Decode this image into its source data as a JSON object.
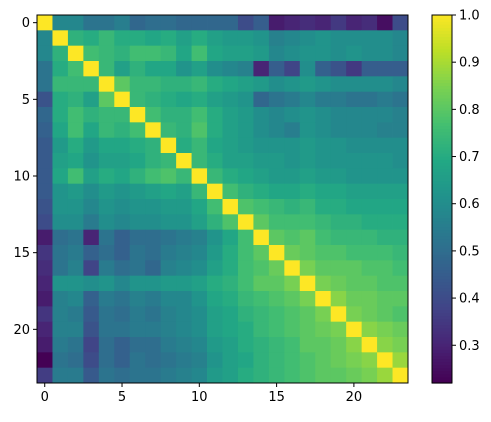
{
  "chart_data": {
    "type": "heatmap",
    "title": "",
    "xlabel": "",
    "ylabel": "",
    "xlim": [
      -0.5,
      23.5
    ],
    "ylim": [
      23.5,
      -0.5
    ],
    "x_ticks": [
      0,
      5,
      10,
      15,
      20
    ],
    "y_ticks": [
      0,
      5,
      10,
      15,
      20
    ],
    "colormap": "viridis",
    "colorbar": {
      "range": [
        0.22,
        1.0
      ],
      "ticks": [
        0.3,
        0.4,
        0.5,
        0.6,
        0.7,
        0.8,
        0.9,
        1.0
      ],
      "tick_labels": [
        "0.3",
        "0.4",
        "0.5",
        "0.6",
        "0.7",
        "0.8",
        "0.9",
        "1.0"
      ]
    },
    "size": 24,
    "values": [
      [
        1.0,
        0.58,
        0.58,
        0.52,
        0.52,
        0.55,
        0.48,
        0.5,
        0.5,
        0.48,
        0.48,
        0.48,
        0.48,
        0.4,
        0.45,
        0.28,
        0.3,
        0.32,
        0.3,
        0.35,
        0.3,
        0.32,
        0.25,
        0.4
      ],
      [
        0.58,
        1.0,
        0.72,
        0.7,
        0.74,
        0.7,
        0.7,
        0.68,
        0.7,
        0.66,
        0.7,
        0.66,
        0.64,
        0.64,
        0.62,
        0.56,
        0.58,
        0.6,
        0.62,
        0.6,
        0.6,
        0.6,
        0.6,
        0.58
      ],
      [
        0.58,
        0.72,
        1.0,
        0.76,
        0.74,
        0.72,
        0.76,
        0.76,
        0.74,
        0.68,
        0.76,
        0.68,
        0.66,
        0.66,
        0.64,
        0.58,
        0.6,
        0.62,
        0.62,
        0.6,
        0.62,
        0.6,
        0.6,
        0.58
      ],
      [
        0.52,
        0.7,
        0.76,
        1.0,
        0.74,
        0.66,
        0.72,
        0.68,
        0.68,
        0.62,
        0.66,
        0.6,
        0.58,
        0.56,
        0.3,
        0.45,
        0.38,
        0.6,
        0.46,
        0.42,
        0.35,
        0.45,
        0.45,
        0.45
      ],
      [
        0.52,
        0.74,
        0.74,
        0.74,
        1.0,
        0.8,
        0.74,
        0.74,
        0.72,
        0.72,
        0.74,
        0.7,
        0.68,
        0.66,
        0.64,
        0.6,
        0.62,
        0.64,
        0.62,
        0.6,
        0.6,
        0.6,
        0.6,
        0.58
      ],
      [
        0.42,
        0.7,
        0.72,
        0.66,
        0.8,
        1.0,
        0.74,
        0.72,
        0.7,
        0.68,
        0.7,
        0.66,
        0.64,
        0.62,
        0.48,
        0.52,
        0.54,
        0.58,
        0.54,
        0.54,
        0.52,
        0.52,
        0.54,
        0.52
      ],
      [
        0.48,
        0.7,
        0.76,
        0.72,
        0.74,
        0.74,
        1.0,
        0.76,
        0.72,
        0.72,
        0.76,
        0.7,
        0.66,
        0.64,
        0.6,
        0.58,
        0.6,
        0.62,
        0.6,
        0.58,
        0.58,
        0.58,
        0.58,
        0.56
      ],
      [
        0.46,
        0.68,
        0.76,
        0.68,
        0.74,
        0.72,
        0.76,
        1.0,
        0.74,
        0.72,
        0.78,
        0.7,
        0.66,
        0.64,
        0.6,
        0.58,
        0.55,
        0.62,
        0.6,
        0.58,
        0.58,
        0.58,
        0.56,
        0.56
      ],
      [
        0.44,
        0.64,
        0.7,
        0.64,
        0.68,
        0.68,
        0.7,
        0.72,
        1.0,
        0.7,
        0.74,
        0.68,
        0.66,
        0.64,
        0.62,
        0.62,
        0.62,
        0.64,
        0.62,
        0.62,
        0.6,
        0.6,
        0.6,
        0.6
      ],
      [
        0.44,
        0.66,
        0.68,
        0.62,
        0.66,
        0.66,
        0.68,
        0.72,
        0.74,
        1.0,
        0.74,
        0.7,
        0.66,
        0.66,
        0.64,
        0.64,
        0.62,
        0.64,
        0.62,
        0.62,
        0.62,
        0.62,
        0.62,
        0.6
      ],
      [
        0.44,
        0.68,
        0.76,
        0.66,
        0.7,
        0.68,
        0.72,
        0.76,
        0.78,
        0.74,
        1.0,
        0.74,
        0.7,
        0.68,
        0.66,
        0.64,
        0.64,
        0.66,
        0.64,
        0.64,
        0.62,
        0.62,
        0.62,
        0.62
      ],
      [
        0.44,
        0.62,
        0.64,
        0.6,
        0.64,
        0.62,
        0.64,
        0.66,
        0.68,
        0.66,
        0.74,
        1.0,
        0.76,
        0.72,
        0.7,
        0.68,
        0.68,
        0.7,
        0.68,
        0.68,
        0.66,
        0.66,
        0.66,
        0.66
      ],
      [
        0.42,
        0.62,
        0.62,
        0.58,
        0.62,
        0.6,
        0.62,
        0.62,
        0.64,
        0.64,
        0.68,
        0.76,
        1.0,
        0.78,
        0.76,
        0.74,
        0.72,
        0.74,
        0.7,
        0.7,
        0.68,
        0.68,
        0.68,
        0.68
      ],
      [
        0.4,
        0.6,
        0.6,
        0.54,
        0.6,
        0.58,
        0.6,
        0.6,
        0.62,
        0.62,
        0.66,
        0.72,
        0.78,
        1.0,
        0.8,
        0.76,
        0.76,
        0.76,
        0.74,
        0.72,
        0.72,
        0.7,
        0.7,
        0.7
      ],
      [
        0.28,
        0.5,
        0.52,
        0.3,
        0.52,
        0.46,
        0.5,
        0.5,
        0.52,
        0.54,
        0.56,
        0.62,
        0.68,
        0.76,
        1.0,
        0.8,
        0.78,
        0.8,
        0.76,
        0.74,
        0.74,
        0.74,
        0.72,
        0.72
      ],
      [
        0.34,
        0.52,
        0.54,
        0.46,
        0.5,
        0.46,
        0.52,
        0.5,
        0.54,
        0.56,
        0.58,
        0.64,
        0.7,
        0.76,
        0.8,
        1.0,
        0.82,
        0.8,
        0.78,
        0.78,
        0.76,
        0.76,
        0.76,
        0.74
      ],
      [
        0.32,
        0.52,
        0.56,
        0.38,
        0.54,
        0.5,
        0.52,
        0.48,
        0.56,
        0.58,
        0.6,
        0.66,
        0.7,
        0.76,
        0.78,
        0.82,
        1.0,
        0.84,
        0.8,
        0.8,
        0.8,
        0.78,
        0.78,
        0.76
      ],
      [
        0.3,
        0.62,
        0.62,
        0.6,
        0.62,
        0.58,
        0.62,
        0.62,
        0.64,
        0.64,
        0.66,
        0.7,
        0.72,
        0.76,
        0.8,
        0.8,
        0.84,
        1.0,
        0.84,
        0.82,
        0.8,
        0.8,
        0.78,
        0.78
      ],
      [
        0.28,
        0.56,
        0.58,
        0.46,
        0.54,
        0.52,
        0.56,
        0.54,
        0.58,
        0.58,
        0.62,
        0.68,
        0.7,
        0.74,
        0.76,
        0.78,
        0.8,
        0.84,
        1.0,
        0.86,
        0.82,
        0.82,
        0.8,
        0.8
      ],
      [
        0.34,
        0.56,
        0.54,
        0.44,
        0.52,
        0.5,
        0.54,
        0.52,
        0.56,
        0.58,
        0.6,
        0.66,
        0.68,
        0.72,
        0.74,
        0.76,
        0.78,
        0.8,
        0.84,
        1.0,
        0.84,
        0.82,
        0.8,
        0.78
      ],
      [
        0.3,
        0.56,
        0.56,
        0.42,
        0.52,
        0.52,
        0.54,
        0.54,
        0.56,
        0.58,
        0.6,
        0.66,
        0.68,
        0.7,
        0.74,
        0.76,
        0.78,
        0.8,
        0.82,
        0.84,
        1.0,
        0.86,
        0.84,
        0.82
      ],
      [
        0.28,
        0.54,
        0.52,
        0.38,
        0.5,
        0.46,
        0.5,
        0.5,
        0.54,
        0.56,
        0.58,
        0.64,
        0.66,
        0.7,
        0.72,
        0.74,
        0.76,
        0.8,
        0.8,
        0.82,
        0.86,
        1.0,
        0.86,
        0.84
      ],
      [
        0.22,
        0.52,
        0.5,
        0.4,
        0.5,
        0.46,
        0.52,
        0.5,
        0.52,
        0.54,
        0.56,
        0.62,
        0.66,
        0.68,
        0.72,
        0.74,
        0.76,
        0.78,
        0.8,
        0.82,
        0.84,
        0.86,
        1.0,
        0.88
      ],
      [
        0.36,
        0.54,
        0.54,
        0.44,
        0.52,
        0.5,
        0.52,
        0.52,
        0.54,
        0.56,
        0.58,
        0.64,
        0.66,
        0.7,
        0.72,
        0.74,
        0.76,
        0.78,
        0.8,
        0.8,
        0.82,
        0.84,
        0.88,
        1.0
      ]
    ]
  }
}
